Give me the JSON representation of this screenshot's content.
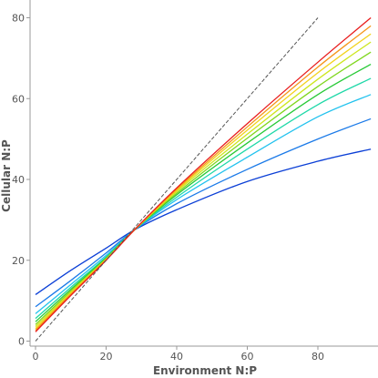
{
  "chart_data": {
    "type": "line",
    "xlabel": "Environment N:P",
    "ylabel": "Cellular N:P",
    "xlim": [
      0,
      95
    ],
    "ylim": [
      0,
      80
    ],
    "xticks": [
      0,
      20,
      40,
      60,
      80
    ],
    "yticks": [
      0,
      20,
      40,
      60,
      80
    ],
    "grid": false,
    "series": [
      {
        "color": "#0b3fd6",
        "dash": false,
        "x": [
          0,
          10,
          20,
          28,
          40,
          60,
          80,
          95
        ],
        "y": [
          11.5,
          17.5,
          23.0,
          27.5,
          32.5,
          39.5,
          44.5,
          47.5
        ]
      },
      {
        "color": "#1b7ae8",
        "dash": false,
        "x": [
          0,
          10,
          20,
          28,
          40,
          60,
          80,
          95
        ],
        "y": [
          8.5,
          15.0,
          21.8,
          27.5,
          34.0,
          42.5,
          50.0,
          55.0
        ]
      },
      {
        "color": "#22c2ee",
        "dash": false,
        "x": [
          0,
          10,
          20,
          28,
          40,
          60,
          80,
          95
        ],
        "y": [
          6.8,
          14.0,
          21.2,
          27.5,
          35.0,
          45.5,
          55.5,
          61.0
        ]
      },
      {
        "color": "#1fd8a8",
        "dash": false,
        "x": [
          0,
          10,
          20,
          28,
          40,
          60,
          80,
          95
        ],
        "y": [
          5.6,
          13.3,
          20.8,
          27.5,
          35.6,
          47.5,
          58.5,
          65.0
        ]
      },
      {
        "color": "#27c936",
        "dash": false,
        "x": [
          0,
          10,
          20,
          28,
          40,
          60,
          80,
          95
        ],
        "y": [
          4.8,
          12.8,
          20.6,
          27.5,
          36.2,
          49.0,
          61.0,
          68.5
        ]
      },
      {
        "color": "#7fd61c",
        "dash": false,
        "x": [
          0,
          10,
          20,
          28,
          40,
          60,
          80,
          95
        ],
        "y": [
          4.1,
          12.4,
          20.4,
          27.5,
          36.6,
          50.2,
          63.0,
          71.5
        ]
      },
      {
        "color": "#cde61c",
        "dash": false,
        "x": [
          0,
          10,
          20,
          28,
          40,
          60,
          80,
          95
        ],
        "y": [
          3.6,
          12.1,
          20.3,
          27.5,
          37.0,
          51.2,
          64.8,
          74.0
        ]
      },
      {
        "color": "#f2d21c",
        "dash": false,
        "x": [
          0,
          10,
          20,
          28,
          40,
          60,
          80,
          95
        ],
        "y": [
          3.1,
          11.8,
          20.2,
          27.5,
          37.3,
          52.2,
          66.4,
          76.0
        ]
      },
      {
        "color": "#f5961a",
        "dash": false,
        "x": [
          0,
          10,
          20,
          28,
          40,
          60,
          80,
          95
        ],
        "y": [
          2.7,
          11.6,
          20.1,
          27.5,
          37.6,
          53.0,
          67.8,
          78.0
        ]
      },
      {
        "color": "#e81c1c",
        "dash": false,
        "x": [
          0,
          10,
          20,
          28,
          40,
          60,
          80,
          95
        ],
        "y": [
          2.3,
          11.3,
          20.0,
          27.5,
          37.9,
          53.8,
          69.0,
          80.0
        ]
      },
      {
        "color": "#555555",
        "dash": true,
        "x": [
          0,
          80
        ],
        "y": [
          0,
          80
        ]
      }
    ]
  }
}
